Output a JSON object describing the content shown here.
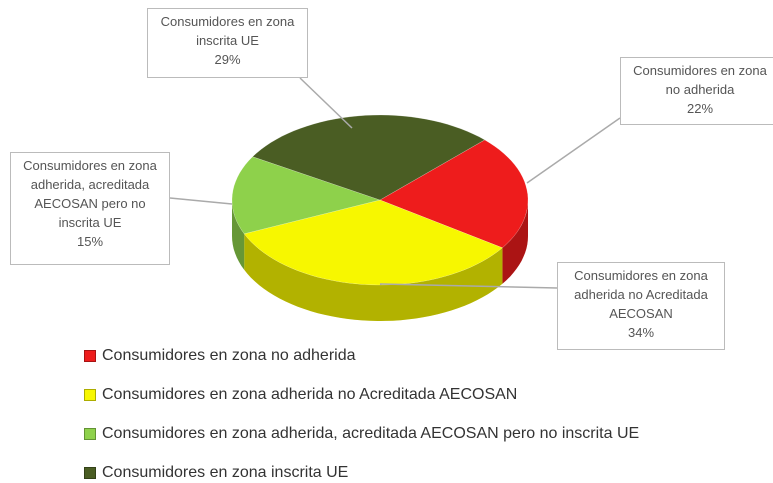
{
  "chart_data": {
    "type": "pie",
    "categories": [
      "Consumidores en zona no adherida",
      "Consumidores en zona adherida no Acreditada AECOSAN",
      "Consumidores en zona adherida, acreditada AECOSAN pero no inscrita UE",
      "Consumidores en zona inscrita UE"
    ],
    "values": [
      22,
      34,
      15,
      29
    ],
    "value_labels": [
      "22%",
      "34%",
      "15%",
      "29%"
    ],
    "colors": [
      "#ee1c1c",
      "#f7f700",
      "#8ed14b",
      "#4a5d23"
    ],
    "legend": "bottom"
  }
}
